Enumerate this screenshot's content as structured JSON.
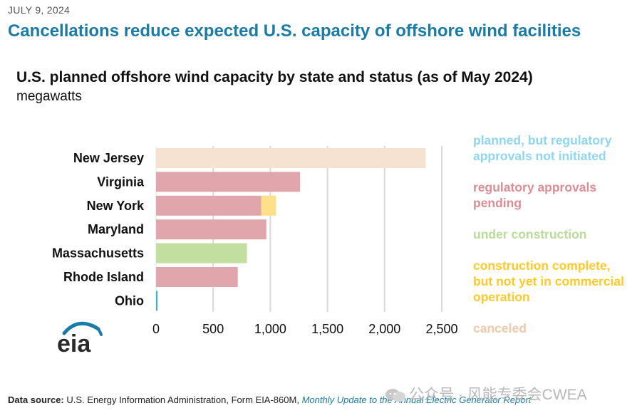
{
  "header": {
    "date": "JULY 9, 2024",
    "headline": "Cancellations reduce expected U.S. capacity of offshore wind facilities"
  },
  "chart_data": {
    "type": "bar",
    "orientation": "horizontal",
    "stacked": true,
    "title": "U.S. planned offshore wind capacity by state and status (as of May 2024)",
    "subtitle": "megawatts",
    "categories": [
      "New Jersey",
      "Virginia",
      "New York",
      "Maryland",
      "Massachusetts",
      "Rhode Island",
      "Ohio"
    ],
    "series": [
      {
        "name": "canceled",
        "color": "#f5e2d0",
        "values": [
          2360,
          0,
          0,
          0,
          0,
          0,
          0
        ]
      },
      {
        "name": "regulatory approvals pending",
        "color": "#e1a6ac",
        "values": [
          0,
          1260,
          920,
          965,
          0,
          715,
          0
        ]
      },
      {
        "name": "under construction",
        "color": "#c2df9f",
        "values": [
          0,
          0,
          0,
          0,
          795,
          0,
          0
        ]
      },
      {
        "name": "construction complete, but not yet in commercial operation",
        "color": "#ffe08a",
        "values": [
          0,
          0,
          130,
          0,
          0,
          0,
          0
        ]
      },
      {
        "name": "planned, but regulatory approvals not initiated",
        "color": "#36b0e8",
        "values": [
          0,
          0,
          0,
          0,
          0,
          0,
          6
        ]
      }
    ],
    "xlim": [
      0,
      2500
    ],
    "xticks": [
      "0",
      "500",
      "1,000",
      "1,500",
      "2,000",
      "2,500"
    ],
    "grid": true
  },
  "legend": [
    {
      "label": "planned, but regulatory approvals not initiated",
      "color": "#8fd6f4"
    },
    {
      "label": "regulatory approvals pending",
      "color": "#dd8d96"
    },
    {
      "label": "under construction",
      "color": "#b9dd99"
    },
    {
      "label": "construction complete, but not yet in commercial operation",
      "color": "#ffc926"
    },
    {
      "label": "canceled",
      "color": "#f2c8a8"
    }
  ],
  "logo": {
    "text": "eia"
  },
  "source": {
    "label": "Data source:",
    "text": "U.S. Energy Information Administration, Form EIA-860M,",
    "link": "Monthly Update to the Annual Electric Generator Report"
  },
  "watermark": {
    "text": "公众号 · 风能专委会CWEA"
  }
}
